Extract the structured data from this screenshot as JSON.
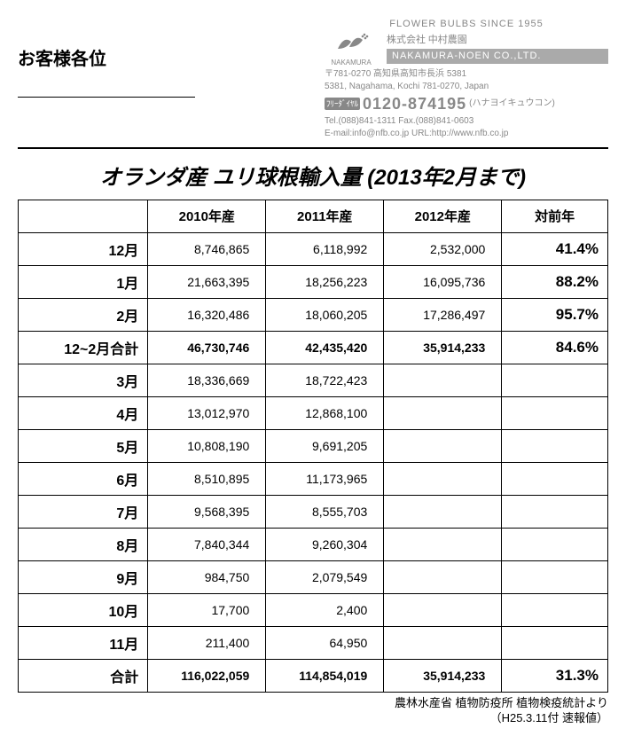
{
  "header": {
    "addressee": "お客様各位",
    "since": "FLOWER BULBS SINCE 1955",
    "kabushiki": "株式会社",
    "company_jp": "中村農園",
    "company_en": "NAKAMURA-NOEN CO.,LTD.",
    "logo_label": "NAKAMURA",
    "addr1": "〒781-0270 高知県高知市長浜 5381",
    "addr2": "5381, Nagahama, Kochi 781-0270, Japan",
    "freedial_label": "ﾌﾘｰﾀﾞｲﾔﾙ",
    "phone": "0120-874195",
    "phone_yomi": "(ハナヨイキュウコン)",
    "tel_fax": "Tel.(088)841-1311   Fax.(088)841-0603",
    "email_url": "E-mail:info@nfb.co.jp   URL:http://www.nfb.co.jp"
  },
  "title": "オランダ産  ユリ球根輸入量 (2013年2月まで)",
  "table": {
    "columns": [
      "",
      "2010年産",
      "2011年産",
      "2012年産",
      "対前年"
    ],
    "col_align": [
      "right",
      "right",
      "right",
      "right",
      "right"
    ],
    "rows": [
      {
        "label": "12月",
        "y2010": "8,746,865",
        "y2011": "6,118,992",
        "y2012": "2,532,000",
        "pct": "41.4%",
        "cls": ""
      },
      {
        "label": "1月",
        "y2010": "21,663,395",
        "y2011": "18,256,223",
        "y2012": "16,095,736",
        "pct": "88.2%",
        "cls": ""
      },
      {
        "label": "2月",
        "y2010": "16,320,486",
        "y2011": "18,060,205",
        "y2012": "17,286,497",
        "pct": "95.7%",
        "cls": ""
      },
      {
        "label": "12~2月合計",
        "y2010": "46,730,746",
        "y2011": "42,435,420",
        "y2012": "35,914,233",
        "pct": "84.6%",
        "cls": "subtotal"
      },
      {
        "label": "3月",
        "y2010": "18,336,669",
        "y2011": "18,722,423",
        "y2012": "",
        "pct": "",
        "cls": ""
      },
      {
        "label": "4月",
        "y2010": "13,012,970",
        "y2011": "12,868,100",
        "y2012": "",
        "pct": "",
        "cls": ""
      },
      {
        "label": "5月",
        "y2010": "10,808,190",
        "y2011": "9,691,205",
        "y2012": "",
        "pct": "",
        "cls": ""
      },
      {
        "label": "6月",
        "y2010": "8,510,895",
        "y2011": "11,173,965",
        "y2012": "",
        "pct": "",
        "cls": ""
      },
      {
        "label": "7月",
        "y2010": "9,568,395",
        "y2011": "8,555,703",
        "y2012": "",
        "pct": "",
        "cls": ""
      },
      {
        "label": "8月",
        "y2010": "7,840,344",
        "y2011": "9,260,304",
        "y2012": "",
        "pct": "",
        "cls": ""
      },
      {
        "label": "9月",
        "y2010": "984,750",
        "y2011": "2,079,549",
        "y2012": "",
        "pct": "",
        "cls": ""
      },
      {
        "label": "10月",
        "y2010": "17,700",
        "y2011": "2,400",
        "y2012": "",
        "pct": "",
        "cls": ""
      },
      {
        "label": "11月",
        "y2010": "211,400",
        "y2011": "64,950",
        "y2012": "",
        "pct": "",
        "cls": ""
      },
      {
        "label": "合計",
        "y2010": "116,022,059",
        "y2011": "114,854,019",
        "y2012": "35,914,233",
        "pct": "31.3%",
        "cls": "total"
      }
    ]
  },
  "footnote": {
    "line1": "農林水産省  植物防疫所  植物検疫統計より",
    "line2": "（H25.3.11付  速報値）"
  },
  "style": {
    "border_color": "#000000",
    "bg": "#ffffff",
    "header_gray": "#888888"
  }
}
